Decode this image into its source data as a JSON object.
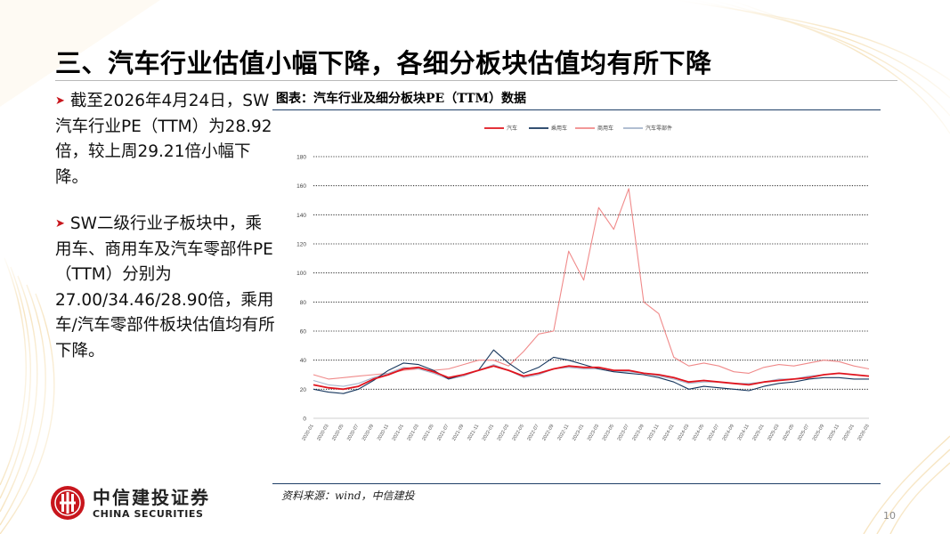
{
  "slide": {
    "title": "三、汽车行业估值小幅下降，各细分板块估值均有所下降",
    "bullets": [
      "截至2026年4月24日，SW汽车行业PE（TTM）为28.92倍，较上周29.21倍小幅下降。",
      "SW二级行业子板块中，乘用车、商用车及汽车零部件PE（TTM）分别为27.00/34.46/28.90倍，乘用车/汽车零部件板块估值均有所下降。"
    ],
    "chart_caption": "图表：汽车行业及细分板块PE（TTM）数据",
    "source": "资料来源：wind，中信建投",
    "logo_cn": "中信建投证券",
    "logo_en": "CHINA SECURITIES",
    "page_number": "10"
  },
  "colors": {
    "accent_red": "#c8161d",
    "caption_rule": "#1f3f67"
  },
  "icons": {
    "bullet": "right-triangle-arrow-icon",
    "logo": "china-securities-coin-logo-icon"
  },
  "chart_data": {
    "type": "line",
    "title": "",
    "xlabel": "",
    "ylabel": "",
    "ylim": [
      0,
      180
    ],
    "yticks": [
      0,
      20,
      40,
      60,
      80,
      100,
      120,
      140,
      160,
      180
    ],
    "grid": "horizontal-dotted",
    "legend_position": "top",
    "x": [
      "2020-01",
      "2020-03",
      "2020-05",
      "2020-07",
      "2020-09",
      "2020-11",
      "2021-01",
      "2021-03",
      "2021-05",
      "2021-07",
      "2021-09",
      "2021-11",
      "2022-01",
      "2022-03",
      "2022-05",
      "2022-07",
      "2022-09",
      "2022-11",
      "2023-01",
      "2023-03",
      "2023-05",
      "2023-07",
      "2023-09",
      "2023-11",
      "2024-01",
      "2024-03",
      "2024-05",
      "2024-07",
      "2024-09",
      "2024-11",
      "2025-01",
      "2025-03",
      "2025-05",
      "2025-07",
      "2025-09",
      "2025-11",
      "2026-01",
      "2026-03"
    ],
    "series": [
      {
        "name": "汽车",
        "color": "#e0141e",
        "values": [
          23,
          21,
          20,
          22,
          27,
          30,
          34,
          35,
          32,
          28,
          30,
          33,
          36,
          33,
          29,
          31,
          34,
          36,
          35,
          35,
          33,
          33,
          31,
          30,
          28,
          25,
          26,
          25,
          24,
          23,
          25,
          26,
          27,
          28,
          30,
          31,
          30,
          29
        ]
      },
      {
        "name": "乘用车",
        "color": "#17375e",
        "values": [
          20,
          18,
          17,
          20,
          26,
          33,
          38,
          37,
          33,
          27,
          30,
          33,
          47,
          38,
          31,
          35,
          42,
          40,
          37,
          34,
          32,
          31,
          30,
          28,
          25,
          20,
          22,
          21,
          20,
          19,
          22,
          24,
          25,
          27,
          28,
          28,
          27,
          27
        ]
      },
      {
        "name": "商用车",
        "color": "#f08a8a",
        "values": [
          30,
          27,
          28,
          29,
          30,
          31,
          33,
          34,
          33,
          34,
          37,
          40,
          40,
          36,
          46,
          58,
          60,
          115,
          95,
          145,
          130,
          158,
          80,
          72,
          42,
          36,
          38,
          36,
          32,
          31,
          35,
          37,
          36,
          38,
          40,
          39,
          36,
          34
        ]
      },
      {
        "name": "汽车零部件",
        "color": "#a6b5cc",
        "values": [
          26,
          23,
          22,
          24,
          28,
          31,
          35,
          34,
          31,
          27,
          29,
          33,
          37,
          33,
          28,
          30,
          34,
          35,
          34,
          34,
          32,
          32,
          31,
          29,
          27,
          24,
          25,
          25,
          24,
          24,
          25,
          27,
          27,
          29,
          30,
          31,
          30,
          29
        ]
      }
    ]
  }
}
